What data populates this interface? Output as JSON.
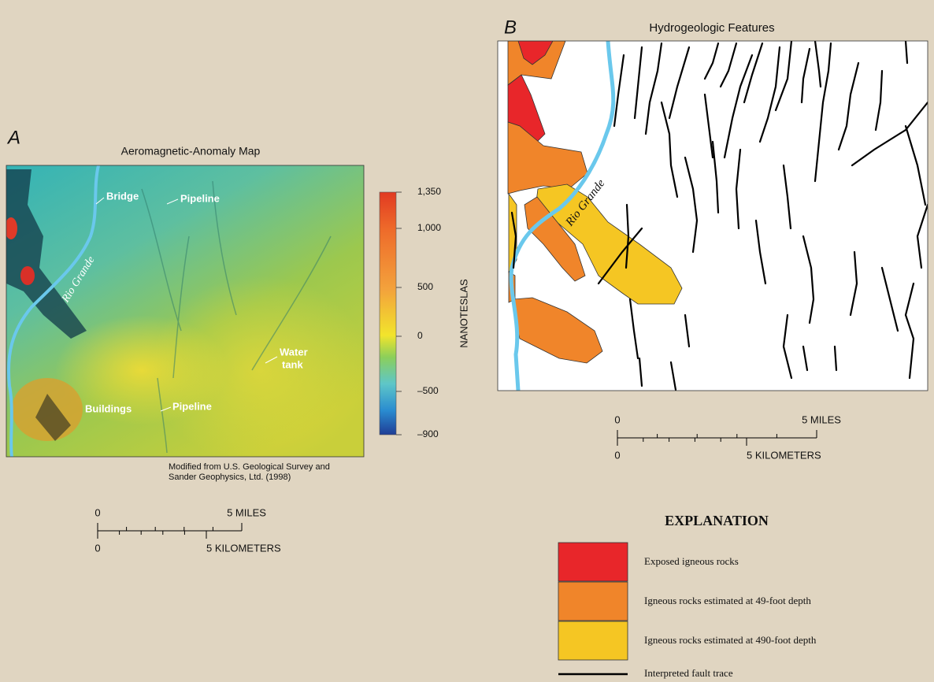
{
  "panel_a": {
    "letter": "A",
    "title": "Aeromagnetic-Anomaly Map",
    "labels": {
      "bridge": "Bridge",
      "pipeline_top": "Pipeline",
      "river": "Rio Grande",
      "water_tank": [
        "Water",
        "tank"
      ],
      "buildings": "Buildings",
      "pipeline_bottom": "Pipeline"
    },
    "colorbar": {
      "label": "NANOTESLAS",
      "ticks": [
        "1,350",
        "1,000",
        "500",
        "0",
        "–500",
        "–900"
      ]
    },
    "credit": [
      "Modified from U.S. Geological Survey and",
      "Sander Geophysics, Ltd. (1998)"
    ],
    "scale": {
      "miles_zero": "0",
      "miles": "5 MILES",
      "km_zero": "0",
      "km": "5 KILOMETERS"
    }
  },
  "panel_b": {
    "letter": "B",
    "title": "Hydrogeologic Features",
    "river_label": "Rio Grande",
    "scale": {
      "miles_zero": "0",
      "miles": "5 MILES",
      "km_zero": "0",
      "km": "5 KILOMETERS"
    }
  },
  "explanation": {
    "title": "EXPLANATION",
    "items": [
      {
        "label": "Exposed  igneous rocks",
        "color": "#e8262a"
      },
      {
        "label": "Igneous rocks estimated at 49-foot depth",
        "color": "#f0852a"
      },
      {
        "label": "Igneous rocks estimated at 490-foot depth",
        "color": "#f5c623"
      }
    ],
    "fault_label": "Interpreted fault trace"
  }
}
